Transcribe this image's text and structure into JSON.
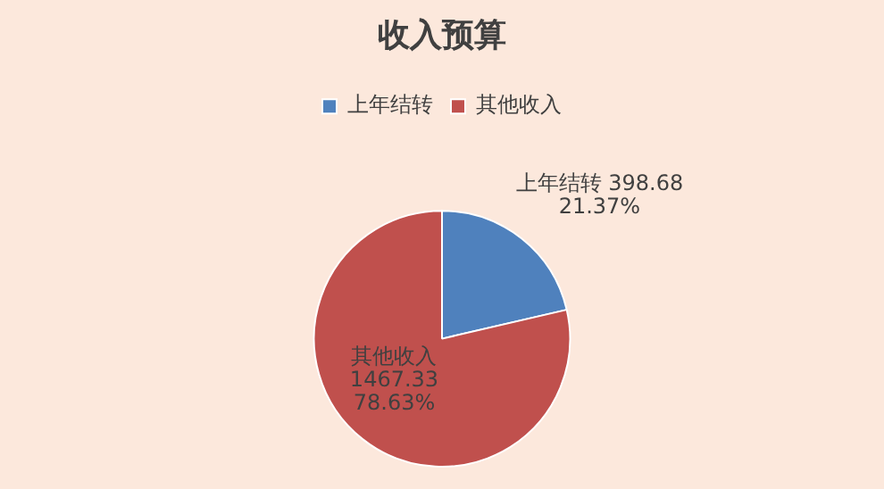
{
  "chart_data": {
    "type": "pie",
    "title": "收入预算",
    "categories": [
      "上年结转",
      "其他收入"
    ],
    "values": [
      398.68,
      1467.33
    ],
    "colors": [
      "#4f81bd",
      "#c0504d"
    ],
    "value_labels": [
      "398.68 21.37%",
      "1467.33 78.63%"
    ],
    "legend": "top"
  }
}
